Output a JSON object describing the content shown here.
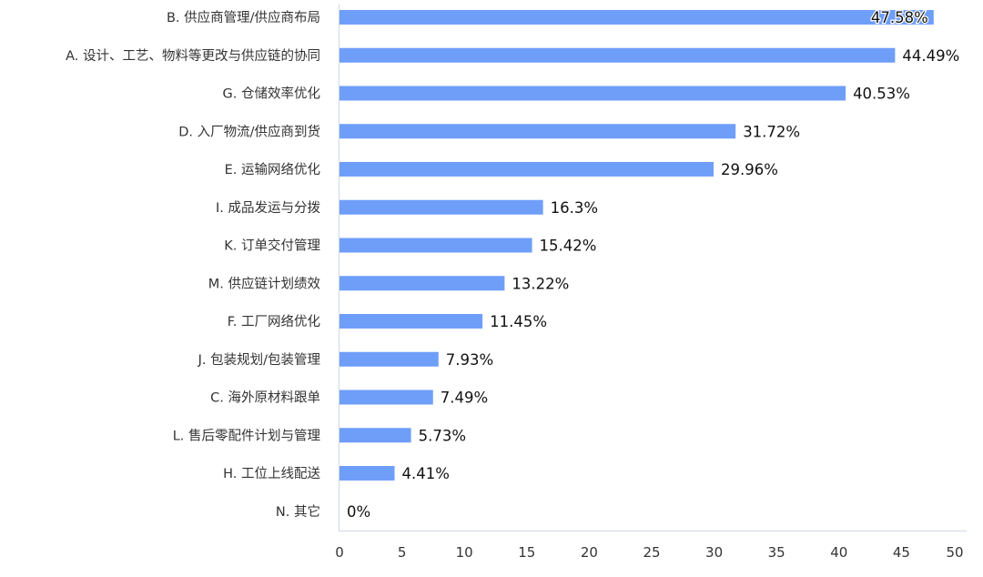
{
  "chart_data": {
    "type": "bar",
    "orientation": "horizontal",
    "title": "",
    "xlabel": "",
    "ylabel": "",
    "xlim": [
      0,
      50
    ],
    "xticks": [
      0,
      5,
      10,
      15,
      20,
      25,
      30,
      35,
      40,
      45,
      50
    ],
    "grid": false,
    "bar_color": "#6f9ef8",
    "categories": [
      "B. 供应商管理/供应商布局",
      "A. 设计、工艺、物料等更改与供应链的协同",
      "G. 仓储效率优化",
      "D. 入厂物流/供应商到货",
      "E. 运输网络优化",
      "I. 成品发运与分拨",
      "K. 订单交付管理",
      "M. 供应链计划绩效",
      "F. 工厂网络优化",
      "J. 包装规划/包装管理",
      "C. 海外原材料跟单",
      "L. 售后零配件计划与管理",
      "H. 工位上线配送",
      "N. 其它"
    ],
    "values": [
      47.58,
      44.49,
      40.53,
      31.72,
      29.96,
      16.3,
      15.42,
      13.22,
      11.45,
      7.93,
      7.49,
      5.73,
      4.41,
      0
    ],
    "value_labels": [
      "47.58%",
      "44.49%",
      "40.53%",
      "31.72%",
      "29.96%",
      "16.3%",
      "15.42%",
      "13.22%",
      "11.45%",
      "7.93%",
      "7.49%",
      "5.73%",
      "4.41%",
      "0%"
    ]
  }
}
